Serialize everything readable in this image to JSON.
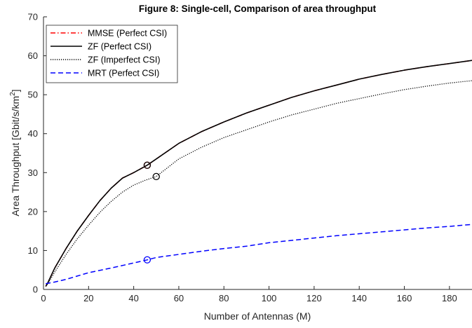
{
  "chart_data": {
    "type": "line",
    "title": "Figure 8: Single-cell, Comparison of area throughput",
    "xlabel": "Number of Antennas (M)",
    "ylabel": "Area Throughput [Gbit/s/km",
    "ylabel_sup": "2",
    "ylabel_end": "]",
    "xlim": [
      0,
      190
    ],
    "ylim": [
      0,
      70
    ],
    "xticks": [
      0,
      20,
      40,
      60,
      80,
      100,
      120,
      140,
      160,
      180
    ],
    "yticks": [
      0,
      10,
      20,
      30,
      40,
      50,
      60,
      70
    ],
    "grid": false,
    "legend_position": "top-left",
    "series": [
      {
        "name": "MMSE (Perfect CSI)",
        "color": "#ff0000",
        "style": "dashdot",
        "x": [
          1,
          2,
          5,
          10,
          15,
          20,
          25,
          30,
          35,
          40,
          46,
          50,
          60,
          70,
          80,
          90,
          100,
          110,
          120,
          130,
          140,
          150,
          160,
          170,
          180,
          190
        ],
        "y": [
          0.8,
          1.8,
          5.5,
          10.5,
          15.0,
          19.0,
          22.8,
          26.0,
          28.6,
          30.0,
          31.9,
          33.5,
          37.5,
          40.5,
          43.0,
          45.3,
          47.3,
          49.3,
          51.0,
          52.5,
          54.0,
          55.2,
          56.3,
          57.2,
          58.0,
          58.8
        ],
        "markers": [
          {
            "x": 46,
            "y": 31.9
          }
        ]
      },
      {
        "name": "ZF (Perfect CSI)",
        "color": "#000000",
        "style": "solid",
        "x": [
          1,
          2,
          5,
          10,
          15,
          20,
          25,
          30,
          35,
          40,
          46,
          50,
          60,
          70,
          80,
          90,
          100,
          110,
          120,
          130,
          140,
          150,
          160,
          170,
          180,
          190
        ],
        "y": [
          0.8,
          1.8,
          5.5,
          10.5,
          15.0,
          19.0,
          22.8,
          26.0,
          28.6,
          30.0,
          31.9,
          33.5,
          37.5,
          40.5,
          43.0,
          45.3,
          47.3,
          49.3,
          51.0,
          52.5,
          54.0,
          55.2,
          56.3,
          57.2,
          58.0,
          58.8
        ],
        "markers": [
          {
            "x": 46,
            "y": 31.9
          }
        ]
      },
      {
        "name": "ZF (Imperfect CSI)",
        "color": "#000000",
        "style": "dotted",
        "x": [
          1,
          2,
          5,
          10,
          15,
          20,
          25,
          30,
          35,
          40,
          45,
          50,
          60,
          70,
          80,
          90,
          100,
          110,
          120,
          130,
          140,
          150,
          160,
          170,
          180,
          190
        ],
        "y": [
          0.8,
          1.5,
          4.5,
          9.0,
          13.0,
          16.5,
          19.8,
          22.6,
          25.0,
          26.8,
          28.0,
          29.0,
          33.5,
          36.5,
          39.0,
          41.0,
          43.0,
          44.8,
          46.3,
          47.8,
          49.0,
          50.2,
          51.3,
          52.2,
          53.0,
          53.6
        ],
        "markers": [
          {
            "x": 50,
            "y": 29.0
          }
        ]
      },
      {
        "name": "MRT (Perfect CSI)",
        "color": "#0000ff",
        "style": "dashed",
        "x": [
          1,
          5,
          10,
          20,
          30,
          40,
          46,
          50,
          60,
          70,
          80,
          90,
          100,
          110,
          120,
          130,
          140,
          150,
          160,
          170,
          180,
          190
        ],
        "y": [
          1.5,
          1.9,
          2.6,
          4.3,
          5.5,
          6.8,
          7.6,
          8.2,
          9.0,
          9.8,
          10.5,
          11.1,
          12.0,
          12.6,
          13.2,
          13.8,
          14.3,
          14.8,
          15.3,
          15.8,
          16.2,
          16.7
        ],
        "markers": [
          {
            "x": 46,
            "y": 7.6
          }
        ]
      }
    ]
  }
}
